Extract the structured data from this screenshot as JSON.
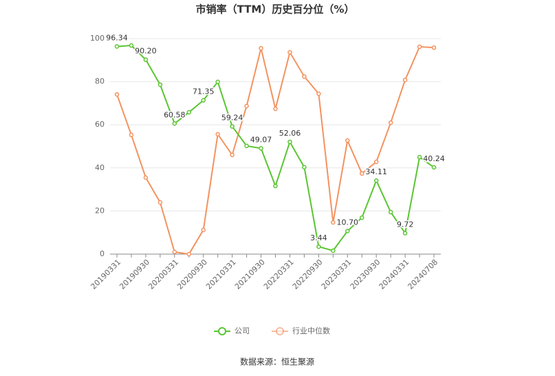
{
  "chart_data": {
    "type": "line",
    "title": "市销率（TTM）历史百分位（%）",
    "categories": [
      "20190331",
      null,
      "20190930",
      null,
      "20200331",
      null,
      "20200930",
      null,
      "20210331",
      null,
      "20210930",
      null,
      "20220331",
      null,
      "20220930",
      null,
      "20230331",
      null,
      "20230930",
      null,
      "20240331",
      null,
      "20240708"
    ],
    "series": [
      {
        "name": "公司",
        "color": "#5ac531",
        "values": [
          96.34,
          96.8,
          90.2,
          78.6,
          60.58,
          65.8,
          71.35,
          79.9,
          59.24,
          50.2,
          49.07,
          31.6,
          52.06,
          40.3,
          3.44,
          1.6,
          10.7,
          16.9,
          34.11,
          19.5,
          9.72,
          45.0,
          40.24
        ],
        "value_labels": [
          "96.34",
          null,
          "90.20",
          null,
          "60.58",
          null,
          "71.35",
          null,
          "59.24",
          null,
          "49.07",
          null,
          "52.06",
          null,
          "3.44",
          null,
          "10.70",
          null,
          "34.11",
          null,
          "9.72",
          null,
          "40.24"
        ]
      },
      {
        "name": "行业中位数",
        "color": "#f3925e",
        "values": [
          74.1,
          55.3,
          35.5,
          24.0,
          1.0,
          0,
          11.2,
          55.6,
          46.0,
          68.7,
          95.5,
          67.4,
          93.6,
          82.4,
          74.4,
          14.7,
          52.7,
          37.4,
          42.8,
          61.0,
          80.8,
          96.2,
          95.8
        ]
      }
    ],
    "ylim": [
      0,
      100
    ],
    "yticks": [
      0,
      20,
      40,
      60,
      80,
      100
    ],
    "grid": true,
    "legend": "bottom",
    "source": "数据来源：恒生聚源"
  }
}
